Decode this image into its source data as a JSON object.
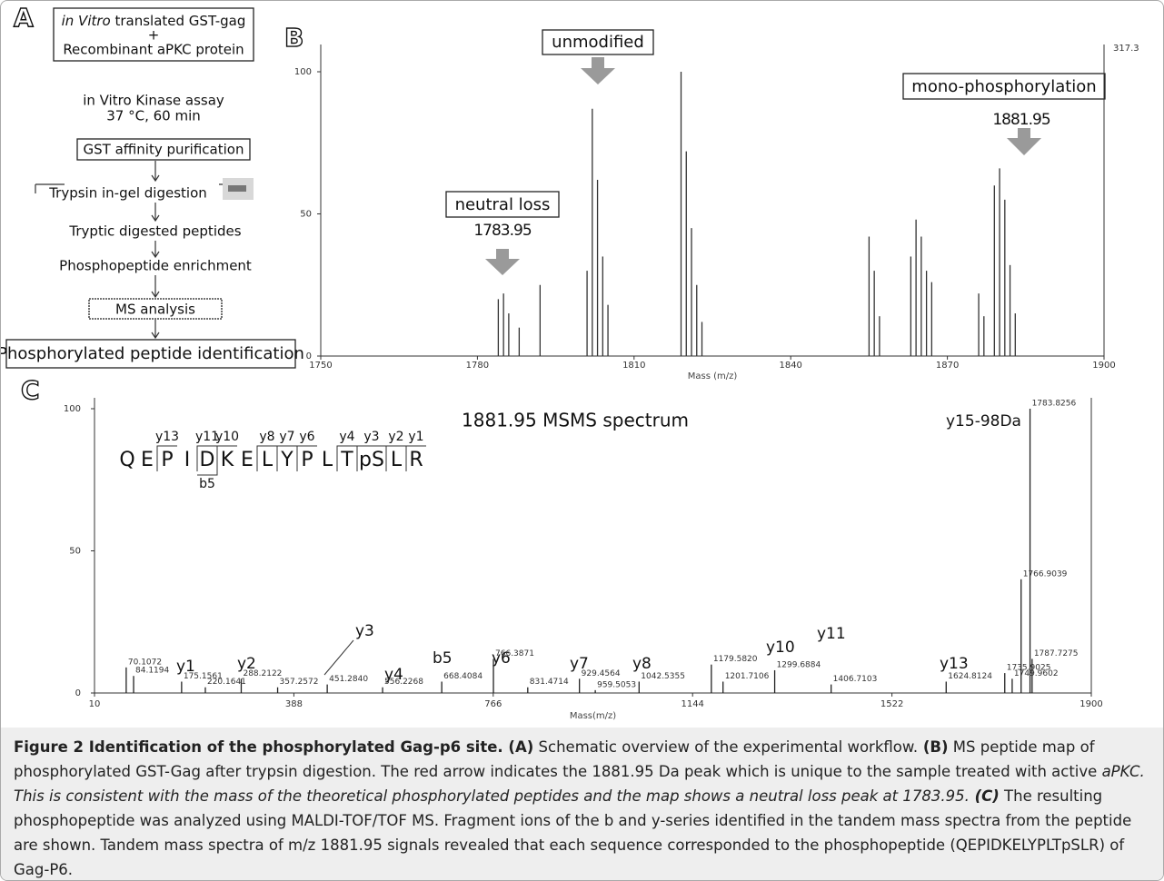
{
  "panel_a": {
    "label": "A",
    "input_1_italic": "in Vitro",
    "input_1": " translated GST-gag",
    "plus": "+",
    "input_2": "Recombinant aPKC protein",
    "assay": "in Vitro Kinase assay",
    "conditions": "37 °C, 60 min",
    "steps": [
      "GST affinity purification",
      "Trypsin in-gel digestion",
      "Tryptic digested peptides",
      "Phosphopeptide enrichment",
      "MS analysis",
      "Phosphorylated peptide identification"
    ]
  },
  "chart_data": [
    {
      "type": "spectrum",
      "panel_label": "B",
      "x_label": "Mass (m/z)",
      "max_intensity": "317.3",
      "color": "#333333",
      "xlim": [
        1750,
        1900
      ],
      "ylim": [
        0,
        100
      ],
      "xticks": [
        1750,
        1780,
        1810,
        1840,
        1870,
        1900
      ],
      "yticks": [
        0,
        50,
        100
      ],
      "annotations": [
        "unmodified",
        "neutral loss",
        "1783.95",
        "mono-phosphorylation",
        "1881.95"
      ],
      "x": [
        1784,
        1785,
        1786,
        1788,
        1792,
        1801,
        1802,
        1803,
        1804,
        1805,
        1819,
        1820,
        1821,
        1822,
        1823,
        1855,
        1856,
        1857,
        1863,
        1864,
        1865,
        1866,
        1867,
        1876,
        1877,
        1879,
        1880,
        1881,
        1882,
        1883
      ],
      "values": [
        20,
        22,
        15,
        10,
        25,
        30,
        87,
        62,
        35,
        18,
        100,
        72,
        45,
        25,
        12,
        42,
        30,
        14,
        35,
        48,
        42,
        30,
        26,
        22,
        14,
        60,
        66,
        55,
        32,
        15
      ]
    },
    {
      "type": "spectrum",
      "panel_label": "C",
      "title": "1881.95 MSMS spectrum",
      "x_label": "Mass(m/z)",
      "color": "#222222",
      "xlim": [
        10,
        1900
      ],
      "ylim": [
        0,
        100
      ],
      "xticks": [
        10,
        388,
        766,
        1144,
        1522,
        1900
      ],
      "yticks": [
        0,
        50,
        100
      ],
      "x": [
        70.1072,
        84.1194,
        175.1561,
        220.1641,
        288.2122,
        357.2572,
        451.284,
        556.2268,
        668.4084,
        766.3871,
        831.4714,
        929.4564,
        959.5053,
        1042.5355,
        1179.582,
        1201.7106,
        1299.6884,
        1406.7103,
        1624.8124,
        1735.9025,
        1749.9602,
        1766.9039,
        1783.8256,
        1787.7275
      ],
      "values": [
        9,
        6,
        4,
        2,
        5,
        2,
        3,
        2,
        4,
        12,
        2,
        5,
        1,
        4,
        10,
        4,
        8,
        3,
        4,
        7,
        5,
        40,
        100,
        12
      ],
      "value_labels": [
        "70.1072",
        "84.1194",
        "175.1561",
        "220.1641",
        "288.2122",
        "357.2572",
        "451.2840",
        "556.2268",
        "668.4084",
        "766.3871",
        "831.4714",
        "929.4564",
        "959.5053",
        "1042.5355",
        "1179.5820",
        "1201.7106",
        "1299.6884",
        "1406.7103",
        "1624.8124",
        "1735.9025",
        "1749.9602",
        "1766.9039",
        "1783.8256",
        "1787.7275"
      ],
      "ion_labels": [
        "y1",
        "y2",
        "y3",
        "y4",
        "b5",
        "y6",
        "y7",
        "y8",
        "y10",
        "y11",
        "y13",
        "y15-98Da"
      ],
      "sequence": {
        "residues": [
          "Q",
          "E",
          "P",
          "I",
          "D",
          "K",
          "E",
          "L",
          "Y",
          "P",
          "L",
          "T",
          "pS",
          "L",
          "R"
        ],
        "ions_above": [
          null,
          null,
          "y13",
          null,
          "y11",
          "y10",
          null,
          "y8",
          "y7",
          "y6",
          null,
          "y4",
          "y3",
          "y2",
          "y1"
        ],
        "ions_below": [
          null,
          null,
          null,
          null,
          "b5",
          null,
          null,
          null,
          null,
          null,
          null,
          null,
          null,
          null,
          null
        ]
      }
    }
  ],
  "caption": [
    "Figure 2 Identification of the phosphorylated Gag-p6 site.",
    " (A)",
    " Schematic overview of the experimental workflow.",
    " (B)",
    " MS peptide map of phosphorylated GST-Gag after trypsin digestion. The red arrow indicates the 1881.95 Da peak which is unique to the sample treated with active ",
    "aPKC. This is consistent with the mass of the theoretical phosphorylated peptides and the map shows a neutral loss peak at 1783.95.",
    " (C)",
    " The resulting phosphopeptide was analyzed using MALDI-TOF/TOF MS. Fragment ions of the b and y-series identified in the tandem mass spectra from the peptide are shown. Tandem mass spectra of m/z 1881.95 signals revealed that each sequence corresponded to the phosphopeptide (QEPIDKELYPLTpSLR) of Gag-P6."
  ]
}
